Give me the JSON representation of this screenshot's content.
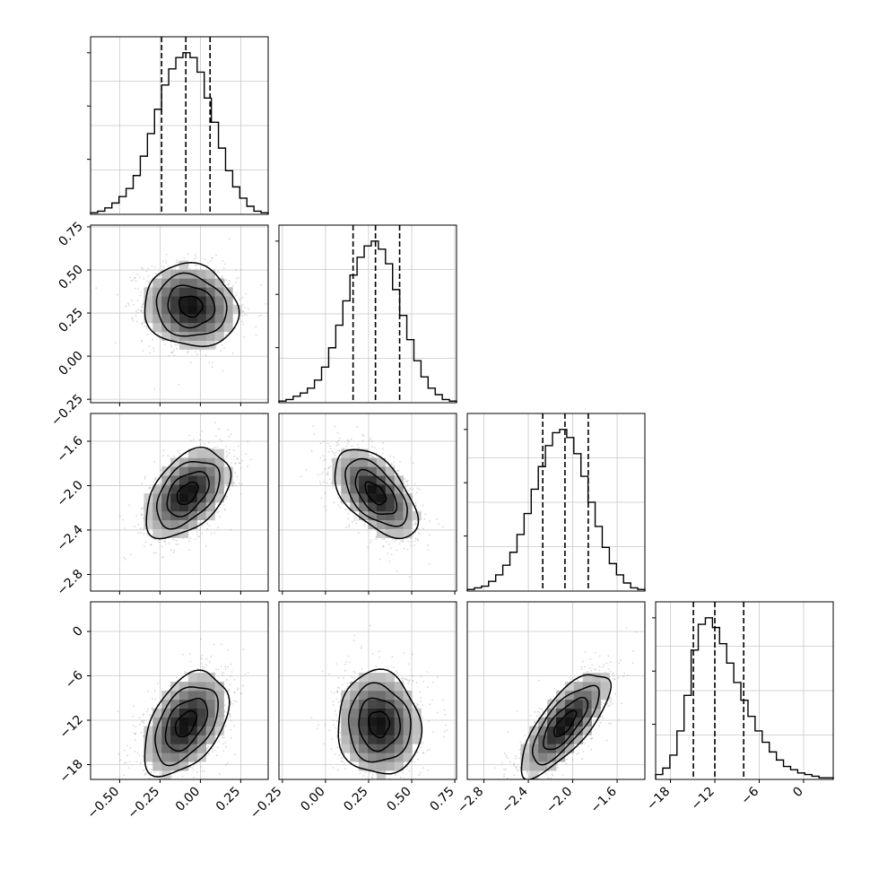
{
  "chart_data": {
    "type": "corner",
    "grid": true,
    "params": [
      {
        "key": "p1",
        "range": [
          -0.68,
          0.42
        ],
        "ticks": [
          -0.5,
          -0.25,
          0.0,
          0.25
        ],
        "tick_labels": [
          "−0.50",
          "−0.25",
          "0.00",
          "0.25"
        ],
        "quantiles": [
          -0.24,
          -0.09,
          0.06
        ]
      },
      {
        "key": "p2",
        "range": [
          -0.27,
          0.76
        ],
        "ticks": [
          -0.25,
          0.0,
          0.25,
          0.5,
          0.75
        ],
        "tick_labels": [
          "−0.25",
          "0.00",
          "0.25",
          "0.50",
          "0.75"
        ],
        "quantiles": [
          0.16,
          0.29,
          0.43
        ]
      },
      {
        "key": "p3",
        "range": [
          -2.95,
          -1.35
        ],
        "ticks": [
          -2.8,
          -2.4,
          -2.0,
          -1.6
        ],
        "tick_labels": [
          "−2.8",
          "−2.4",
          "−2.0",
          "−1.6"
        ],
        "quantiles": [
          -2.27,
          -2.07,
          -1.86
        ]
      },
      {
        "key": "p4",
        "range": [
          -20.0,
          4.0
        ],
        "ticks": [
          -18,
          -12,
          -6,
          0
        ],
        "tick_labels": [
          "−18",
          "−12",
          "−6",
          "0"
        ],
        "quantiles": [
          -14.9,
          -12.0,
          -8.1
        ]
      }
    ],
    "histograms": [
      {
        "param": "p1",
        "max_count": 1.0,
        "values": [
          0.01,
          0.02,
          0.04,
          0.07,
          0.11,
          0.16,
          0.24,
          0.36,
          0.5,
          0.65,
          0.8,
          0.9,
          0.97,
          1.0,
          0.97,
          0.88,
          0.72,
          0.57,
          0.41,
          0.27,
          0.17,
          0.1,
          0.05,
          0.02,
          0.01
        ]
      },
      {
        "param": "p2",
        "max_count": 1.0,
        "values": [
          0.01,
          0.02,
          0.04,
          0.06,
          0.09,
          0.14,
          0.22,
          0.34,
          0.48,
          0.63,
          0.79,
          0.9,
          0.97,
          1.0,
          0.95,
          0.86,
          0.7,
          0.54,
          0.39,
          0.26,
          0.16,
          0.09,
          0.05,
          0.02,
          0.01
        ]
      },
      {
        "param": "p3",
        "max_count": 1.0,
        "values": [
          0.01,
          0.02,
          0.03,
          0.06,
          0.1,
          0.16,
          0.24,
          0.35,
          0.48,
          0.63,
          0.77,
          0.9,
          0.98,
          1.0,
          0.95,
          0.85,
          0.71,
          0.55,
          0.4,
          0.27,
          0.17,
          0.1,
          0.05,
          0.02,
          0.01
        ]
      },
      {
        "param": "p4",
        "max_count": 1.0,
        "values": [
          0.03,
          0.07,
          0.15,
          0.3,
          0.52,
          0.8,
          0.96,
          1.0,
          0.94,
          0.84,
          0.72,
          0.6,
          0.49,
          0.39,
          0.3,
          0.23,
          0.17,
          0.12,
          0.08,
          0.06,
          0.04,
          0.03,
          0.02,
          0.01,
          0.01
        ]
      }
    ],
    "joint": [
      {
        "x": "p1",
        "y": "p2",
        "mean": [
          -0.06,
          0.29
        ],
        "sd": [
          0.145,
          0.12
        ],
        "corr": -0.1
      },
      {
        "x": "p1",
        "y": "p3",
        "mean": [
          -0.08,
          -2.07
        ],
        "sd": [
          0.13,
          0.2
        ],
        "corr": 0.45
      },
      {
        "x": "p2",
        "y": "p3",
        "mean": [
          0.29,
          -2.07
        ],
        "sd": [
          0.12,
          0.2
        ],
        "corr": -0.55
      },
      {
        "x": "p1",
        "y": "p4",
        "mean": [
          -0.09,
          -12.5
        ],
        "sd": [
          0.13,
          3.5
        ],
        "corr": 0.45
      },
      {
        "x": "p2",
        "y": "p4",
        "mean": [
          0.31,
          -12.5
        ],
        "sd": [
          0.12,
          3.5
        ],
        "corr": -0.05
      },
      {
        "x": "p3",
        "y": "p4",
        "mean": [
          -2.07,
          -12.5
        ],
        "sd": [
          0.2,
          3.5
        ],
        "corr": 0.75
      }
    ]
  }
}
